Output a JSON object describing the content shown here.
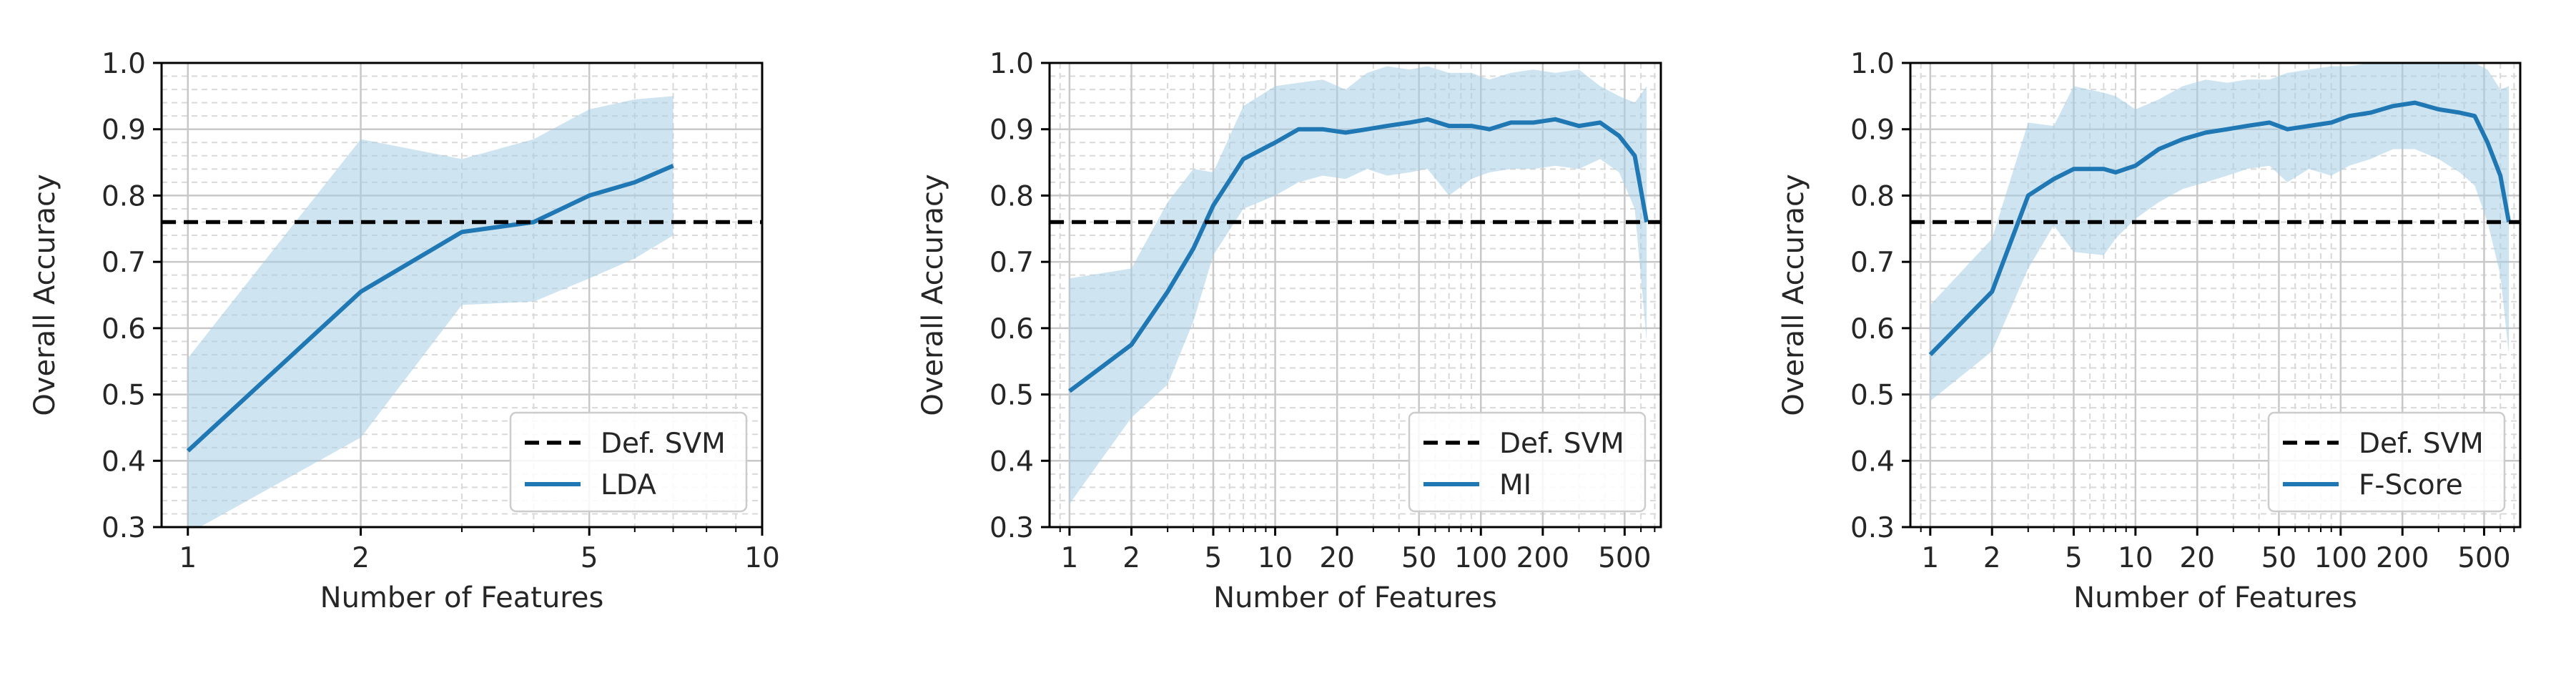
{
  "colors": {
    "line": "#1f77b4",
    "band": "#a6cee3",
    "baseline": "#000000",
    "grid_major": "#c8c8c8",
    "grid_minor": "#d9d9d9",
    "legend_border": "#cccccc"
  },
  "chart_data": [
    {
      "type": "line",
      "xlabel": "Number of Features",
      "ylabel": "Overall Accuracy",
      "xscale": "log",
      "xlim": [
        0.9,
        10
      ],
      "ylim": [
        0.3,
        1.0
      ],
      "xticks": [
        1,
        2,
        5,
        10
      ],
      "yticks": [
        0.3,
        0.4,
        0.5,
        0.6,
        0.7,
        0.8,
        0.9,
        1.0
      ],
      "grid": true,
      "legend_position": "lower-right",
      "baseline": {
        "name": "Def. SVM",
        "y": 0.76,
        "style": "dashed"
      },
      "series": [
        {
          "name": "LDA",
          "x": [
            1,
            2,
            3,
            4,
            5,
            6,
            7
          ],
          "y": [
            0.415,
            0.655,
            0.745,
            0.76,
            0.8,
            0.82,
            0.845
          ],
          "band_upper": [
            0.555,
            0.885,
            0.855,
            0.885,
            0.93,
            0.945,
            0.95
          ],
          "band_lower": [
            0.29,
            0.435,
            0.635,
            0.64,
            0.675,
            0.705,
            0.74
          ]
        }
      ]
    },
    {
      "type": "line",
      "xlabel": "Number of Features",
      "ylabel": "Overall Accuracy",
      "xscale": "log",
      "xlim": [
        0.8,
        750
      ],
      "ylim": [
        0.3,
        1.0
      ],
      "xticks": [
        1,
        2,
        5,
        10,
        20,
        50,
        100,
        200,
        500
      ],
      "yticks": [
        0.3,
        0.4,
        0.5,
        0.6,
        0.7,
        0.8,
        0.9,
        1.0
      ],
      "grid": true,
      "legend_position": "lower-right",
      "baseline": {
        "name": "Def. SVM",
        "y": 0.76,
        "style": "dashed"
      },
      "series": [
        {
          "name": "MI",
          "x": [
            1,
            2,
            3,
            4,
            5,
            7,
            10,
            13,
            17,
            22,
            28,
            35,
            45,
            55,
            70,
            90,
            110,
            140,
            180,
            230,
            300,
            380,
            470,
            560,
            640
          ],
          "y": [
            0.505,
            0.575,
            0.655,
            0.72,
            0.785,
            0.855,
            0.88,
            0.9,
            0.9,
            0.895,
            0.9,
            0.905,
            0.91,
            0.915,
            0.905,
            0.905,
            0.9,
            0.91,
            0.91,
            0.915,
            0.905,
            0.91,
            0.89,
            0.86,
            0.76
          ],
          "band_upper": [
            0.675,
            0.69,
            0.79,
            0.84,
            0.835,
            0.935,
            0.965,
            0.97,
            0.975,
            0.96,
            0.985,
            0.995,
            0.99,
            0.995,
            0.985,
            0.985,
            0.975,
            0.985,
            0.99,
            0.985,
            0.99,
            0.965,
            0.95,
            0.94,
            0.965
          ],
          "band_lower": [
            0.335,
            0.465,
            0.515,
            0.61,
            0.71,
            0.78,
            0.8,
            0.82,
            0.83,
            0.825,
            0.84,
            0.83,
            0.835,
            0.84,
            0.8,
            0.825,
            0.835,
            0.84,
            0.84,
            0.845,
            0.84,
            0.855,
            0.835,
            0.78,
            0.58
          ]
        }
      ]
    },
    {
      "type": "line",
      "xlabel": "Number of Features",
      "ylabel": "Overall Accuracy",
      "xscale": "log",
      "xlim": [
        0.8,
        750
      ],
      "ylim": [
        0.3,
        1.0
      ],
      "xticks": [
        1,
        2,
        5,
        10,
        20,
        50,
        100,
        200,
        500
      ],
      "yticks": [
        0.3,
        0.4,
        0.5,
        0.6,
        0.7,
        0.8,
        0.9,
        1.0
      ],
      "grid": true,
      "legend_position": "lower-right",
      "baseline": {
        "name": "Def. SVM",
        "y": 0.76,
        "style": "dashed"
      },
      "series": [
        {
          "name": "F-Score",
          "x": [
            1,
            2,
            3,
            4,
            5,
            7,
            8,
            10,
            13,
            17,
            22,
            28,
            35,
            45,
            55,
            70,
            90,
            110,
            140,
            180,
            230,
            300,
            380,
            450,
            520,
            600,
            660
          ],
          "y": [
            0.56,
            0.655,
            0.8,
            0.825,
            0.84,
            0.84,
            0.835,
            0.845,
            0.87,
            0.885,
            0.895,
            0.9,
            0.905,
            0.91,
            0.9,
            0.905,
            0.91,
            0.92,
            0.925,
            0.935,
            0.94,
            0.93,
            0.925,
            0.92,
            0.88,
            0.83,
            0.76
          ],
          "band_upper": [
            0.635,
            0.735,
            0.91,
            0.905,
            0.965,
            0.955,
            0.95,
            0.93,
            0.945,
            0.965,
            0.975,
            0.97,
            0.975,
            0.975,
            0.985,
            0.99,
            0.995,
            0.995,
            1.0,
            1.0,
            1.0,
            1.0,
            1.0,
            1.0,
            0.99,
            0.96,
            0.965
          ],
          "band_lower": [
            0.49,
            0.565,
            0.69,
            0.755,
            0.715,
            0.71,
            0.735,
            0.765,
            0.79,
            0.81,
            0.82,
            0.83,
            0.84,
            0.845,
            0.82,
            0.84,
            0.83,
            0.845,
            0.855,
            0.87,
            0.87,
            0.855,
            0.835,
            0.815,
            0.76,
            0.68,
            0.56
          ]
        }
      ]
    }
  ]
}
